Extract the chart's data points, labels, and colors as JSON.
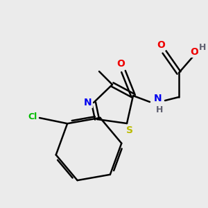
{
  "bg_color": "#ebebeb",
  "bond_color": "#000000",
  "atom_colors": {
    "N": "#0000ee",
    "S": "#bbbb00",
    "O": "#ee0000",
    "Cl": "#00bb00",
    "H": "#606070",
    "C": "#000000"
  },
  "figsize": [
    3.0,
    3.0
  ],
  "dpi": 100
}
